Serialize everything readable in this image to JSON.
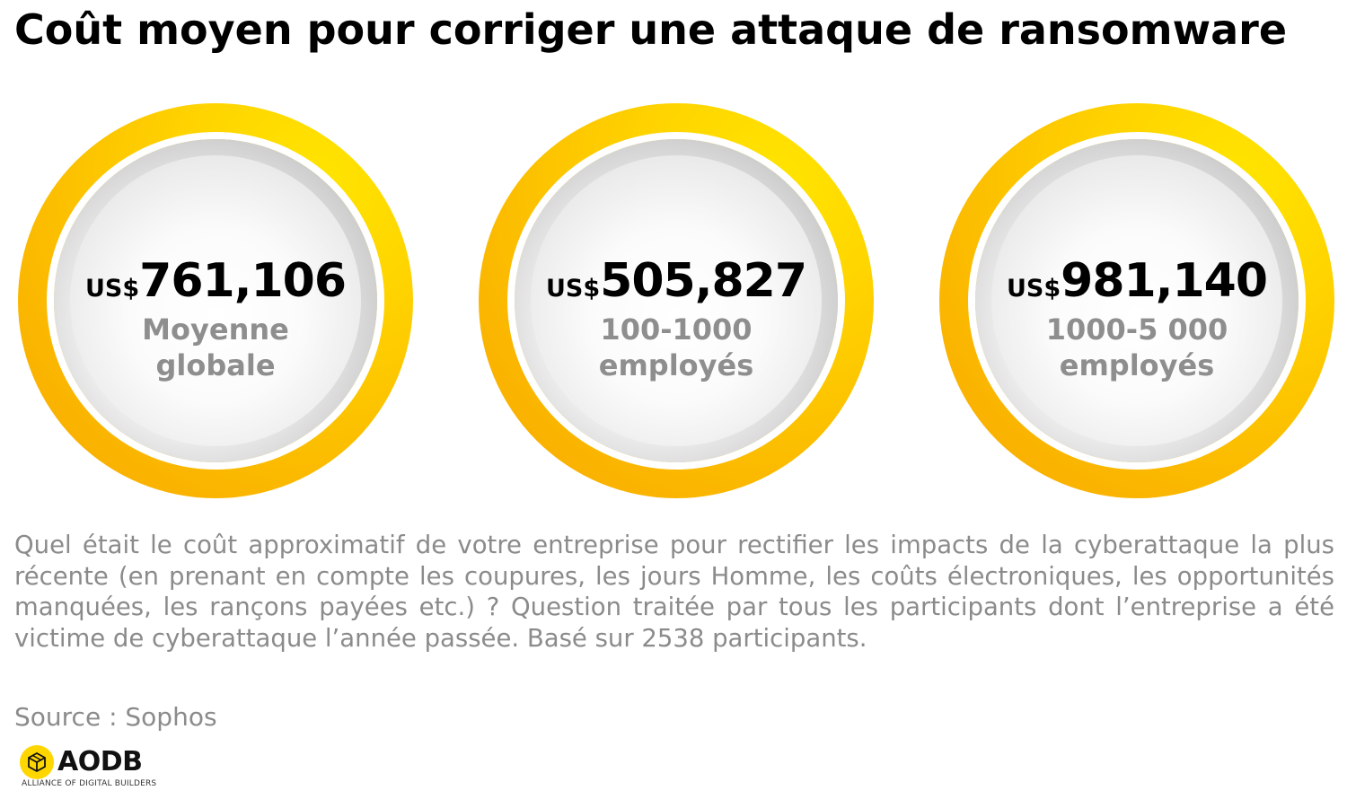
{
  "title": "Coût moyen pour corriger une attaque de ransomware",
  "chart_data": {
    "type": "table",
    "currency_prefix": "US$",
    "items": [
      {
        "value": 761106,
        "display": "761,106",
        "label_lines": [
          "Moyenne",
          "globale"
        ]
      },
      {
        "value": 505827,
        "display": "505,827",
        "label_lines": [
          "100-1000",
          "employés"
        ]
      },
      {
        "value": 981140,
        "display": "981,140",
        "label_lines": [
          "1000-5 000",
          "employés"
        ]
      }
    ],
    "colors": {
      "ring": "#fbc400",
      "ring_highlight": "#ffe500",
      "disc": "#d6d6d6",
      "label": "#8e8e8e"
    }
  },
  "question": "Quel était le coût approximatif de votre entreprise pour rectifier les impacts de la cyberattaque la plus récente (en prenant en compte les coupures, les jours Homme, les coûts électroniques, les opportunités manquées, les rançons payées etc.) ? Question traitée par tous les participants dont l’entreprise a été victime de cyberattaque l’année passée. Basé sur 2538 participants.",
  "source": "Source : Sophos",
  "logo": {
    "name": "AODB",
    "tagline": "ALLIANCE OF DIGITAL BUILDERS",
    "icon": "cube-icon",
    "color": "#ffd600"
  }
}
